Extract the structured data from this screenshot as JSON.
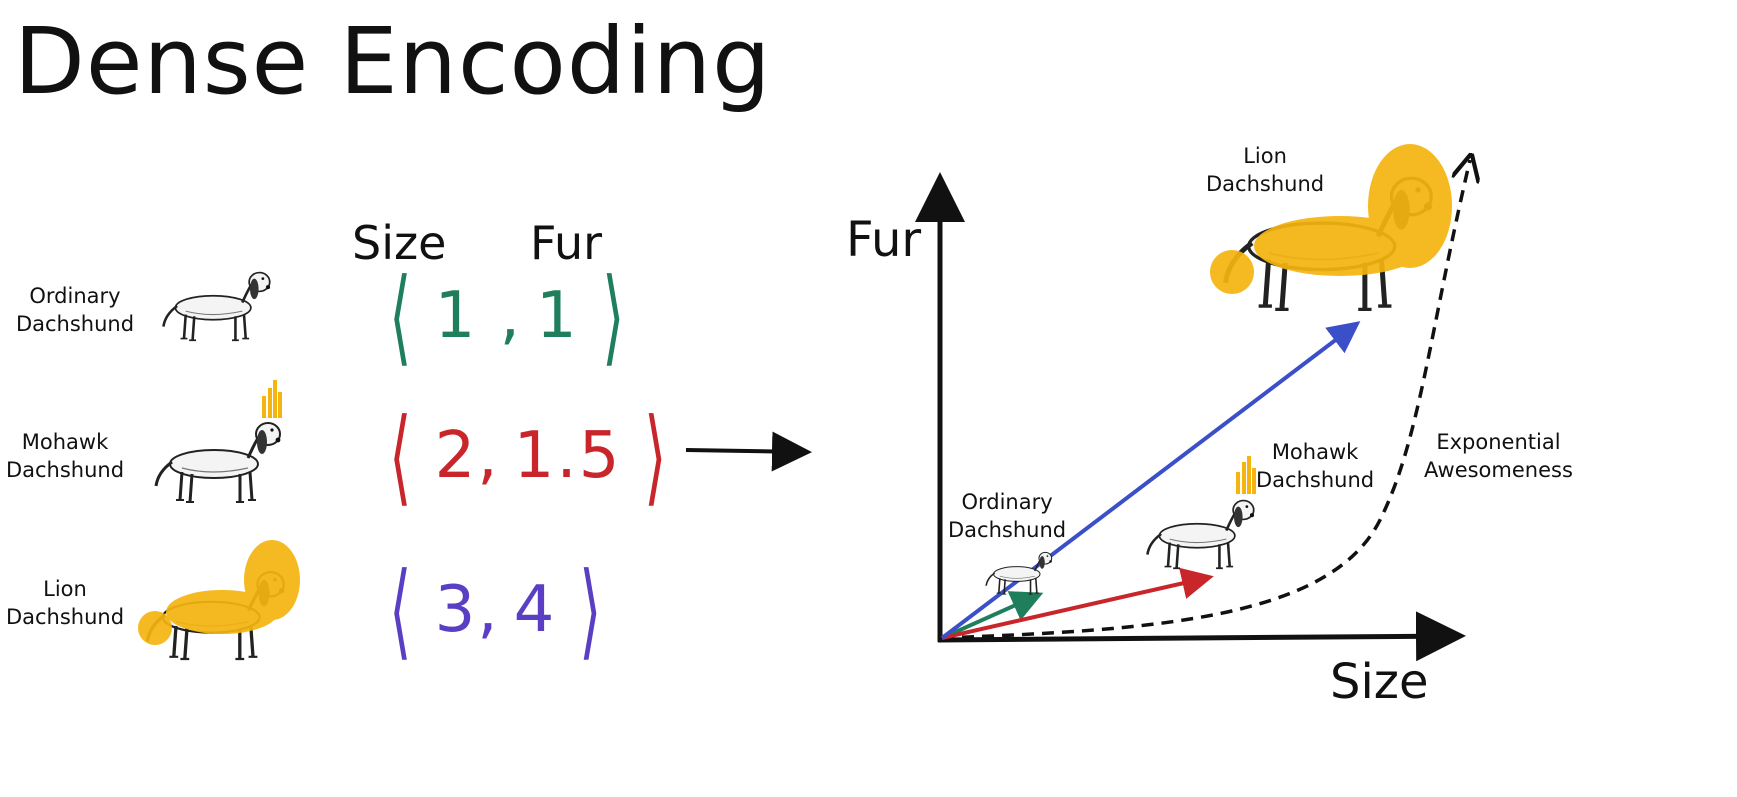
{
  "title": "Dense Encoding",
  "table": {
    "column_headers": [
      "Size",
      "Fur"
    ],
    "rows": [
      {
        "label_line1": "Ordinary",
        "label_line2": "Dachshund",
        "vector_left": "1 ,",
        "vector_right": "1",
        "color": "#1f7f5c"
      },
      {
        "label_line1": "Mohawk",
        "label_line2": "Dachshund",
        "vector_left": "2,",
        "vector_right": "1.5",
        "color": "#c8262b"
      },
      {
        "label_line1": "Lion",
        "label_line2": "Dachshund",
        "vector_left": "3,",
        "vector_right": "4",
        "color": "#5a3fc4"
      }
    ]
  },
  "plot": {
    "x_axis_label": "Size",
    "y_axis_label": "Fur",
    "curve_label_line1": "Exponential",
    "curve_label_line2": "Awesomeness",
    "points": [
      {
        "label_line1": "Ordinary",
        "label_line2": "Dachshund",
        "size": 1,
        "fur": 1,
        "color": "#1f7f5c"
      },
      {
        "label_line1": "Mohawk",
        "label_line2": "Dachshund",
        "size": 2,
        "fur": 1.5,
        "color": "#c8262b"
      },
      {
        "label_line1": "Lion",
        "label_line2": "Dachshund",
        "size": 3,
        "fur": 4,
        "color": "#3a4fc8"
      }
    ]
  },
  "colors": {
    "mane": "#f5b40f",
    "ink": "#111111"
  }
}
